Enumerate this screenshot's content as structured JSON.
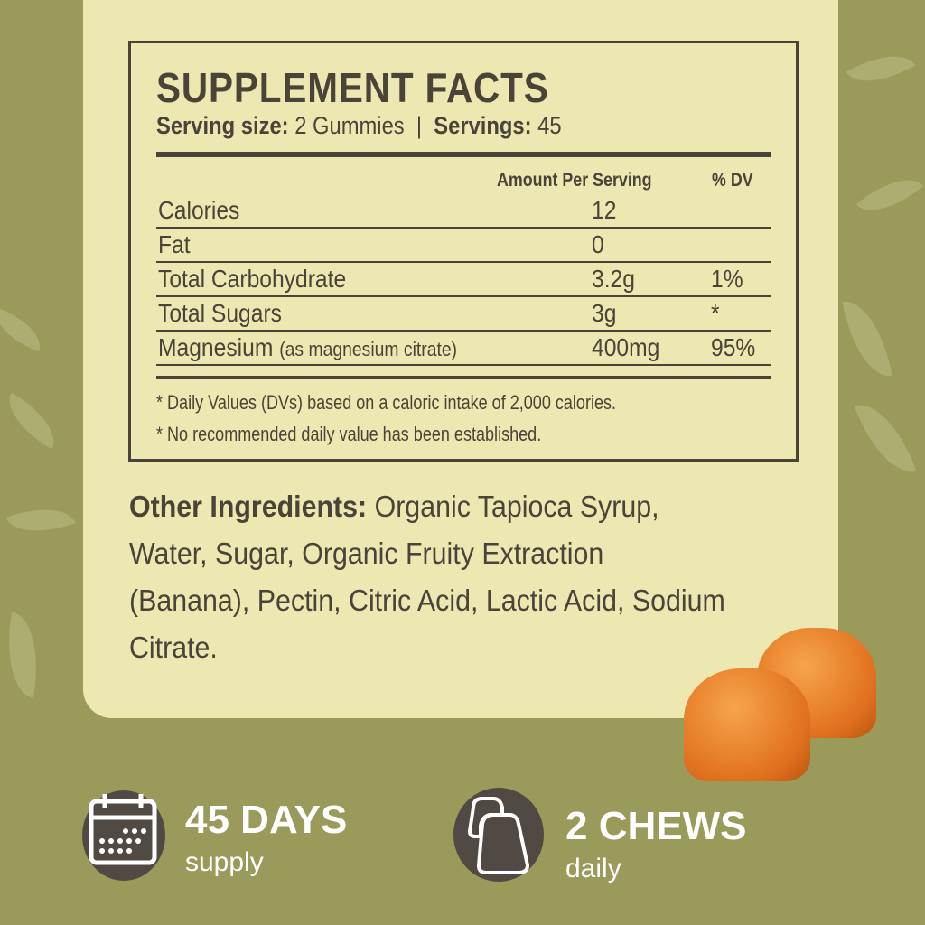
{
  "facts": {
    "title": "SUPPLEMENT FACTS",
    "serving_size_label": "Serving size:",
    "serving_size_value": "2 Gummies",
    "separator": "|",
    "servings_label": "Servings:",
    "servings_value": "45",
    "header_amount": "Amount Per Serving",
    "header_dv": "% DV",
    "rows": [
      {
        "name": "Calories",
        "sub": "",
        "amount": "12",
        "dv": ""
      },
      {
        "name": "Fat",
        "sub": "",
        "amount": "0",
        "dv": ""
      },
      {
        "name": "Total Carbohydrate",
        "sub": "",
        "amount": "3.2g",
        "dv": "1%"
      },
      {
        "name": "Total Sugars",
        "sub": "",
        "amount": "3g",
        "dv": "*"
      },
      {
        "name": "Magnesium",
        "sub": "(as magnesium citrate)",
        "amount": "400mg",
        "dv": "95%"
      }
    ],
    "notes": [
      "* Daily Values (DVs)  based on a caloric intake of 2,000 calories.",
      "* No recommended daily value has been established."
    ]
  },
  "ingredients": {
    "label": "Other Ingredients:",
    "text": " Organic Tapioca Syrup, Water, Sugar, Organic Fruity Extraction (Banana), Pectin, Citric Acid, Lactic Acid, Sodium Citrate."
  },
  "badges": [
    {
      "icon": "calendar-icon",
      "title": "45 DAYS",
      "subtitle": "supply"
    },
    {
      "icon": "gummies-icon",
      "title": "2 CHEWS",
      "subtitle": "daily"
    }
  ],
  "colors": {
    "background": "#9a9a5b",
    "panel": "#ede8b2",
    "text": "#4a4338",
    "badge": "#514a44"
  }
}
